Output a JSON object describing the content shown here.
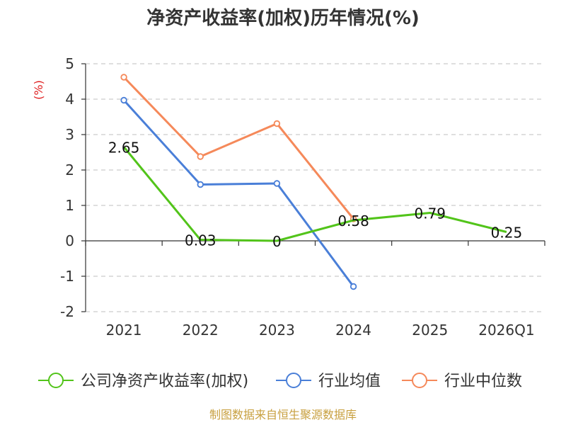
{
  "chart_data": {
    "type": "line",
    "title": "净资产收益率(加权)历年情况(%)",
    "ylabel": "(%)",
    "xlabel": "",
    "categories": [
      "2021",
      "2022",
      "2023",
      "2024",
      "2025",
      "2026Q1"
    ],
    "ylim": [
      -2,
      5
    ],
    "yticks": [
      -2,
      -1,
      0,
      1,
      2,
      3,
      4,
      5
    ],
    "series": [
      {
        "name": "公司净资产收益率(加权)",
        "color": "#52c41a",
        "values": [
          2.65,
          0.03,
          0,
          0.58,
          0.79,
          0.25
        ],
        "labels": [
          "2.65",
          "0.03",
          "0",
          "0.58",
          "0.79",
          "0.25"
        ],
        "show_markers": false,
        "show_labels": true
      },
      {
        "name": "行业均值",
        "color": "#4a7fd8",
        "values": [
          3.97,
          1.59,
          1.62,
          -1.29,
          null,
          null
        ],
        "show_markers": true,
        "show_labels": false
      },
      {
        "name": "行业中位数",
        "color": "#f5895a",
        "values": [
          4.62,
          2.38,
          3.31,
          0.62,
          null,
          null
        ],
        "show_markers": true,
        "show_labels": false
      }
    ],
    "grid": true,
    "legend_position": "bottom"
  },
  "source": "制图数据来自恒生聚源数据库"
}
